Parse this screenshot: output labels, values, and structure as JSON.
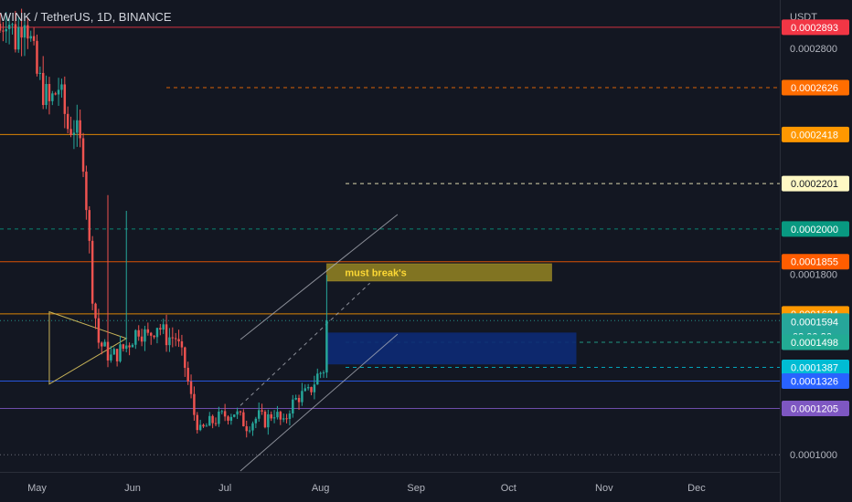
{
  "header": {
    "symbol_title": "WINK / TetherUS, 1D, BINANCE"
  },
  "price_scale": {
    "currency": "USDT"
  },
  "colors": {
    "background": "#131722",
    "up": "#26a69a",
    "down": "#ef5350",
    "axis_text": "#b2b5be"
  },
  "chart_data": {
    "type": "candlestick",
    "title": "WINK / TetherUS, 1D, BINANCE",
    "y_unit": "USDT",
    "ylim": [
      9.24e-05,
      0.0003014
    ],
    "x_range": [
      "2021-04-19",
      "2021-12-28"
    ],
    "x_ticks": [
      "May",
      "Jun",
      "Jul",
      "Aug",
      "Sep",
      "Oct",
      "Nov",
      "Dec"
    ],
    "y_ticks": [
      "0.0002800",
      "0.0001800",
      "0.0001000"
    ],
    "grid": false,
    "candles": {
      "start_date": "2021-04-19",
      "interval": "1D",
      "anchors": [
        {
          "date": "2021-04-19",
          "close": 0.000288
        },
        {
          "date": "2021-04-21",
          "close": 0.000296
        },
        {
          "date": "2021-04-24",
          "close": 0.000284
        },
        {
          "date": "2021-04-27",
          "close": 0.000297
        },
        {
          "date": "2021-05-01",
          "close": 0.000268
        },
        {
          "date": "2021-05-05",
          "close": 0.000255
        },
        {
          "date": "2021-05-08",
          "close": 0.000263
        },
        {
          "date": "2021-05-11",
          "close": 0.000245
        },
        {
          "date": "2021-05-13",
          "close": 0.000246
        },
        {
          "date": "2021-05-16",
          "close": 0.000232
        },
        {
          "date": "2021-05-19",
          "close": 0.000172
        },
        {
          "date": "2021-05-21",
          "close": 0.00015
        },
        {
          "date": "2021-05-25",
          "close": 0.000143
        },
        {
          "date": "2021-05-29",
          "close": 0.000147
        },
        {
          "date": "2021-05-31",
          "close": 0.00015
        },
        {
          "date": "2021-06-03",
          "close": 0.000156
        },
        {
          "date": "2021-06-06",
          "close": 0.000152
        },
        {
          "date": "2021-06-09",
          "close": 0.000158
        },
        {
          "date": "2021-06-12",
          "close": 0.000152
        },
        {
          "date": "2021-06-15",
          "close": 0.000152
        },
        {
          "date": "2021-06-18",
          "close": 0.000139
        },
        {
          "date": "2021-06-21",
          "close": 0.000118
        },
        {
          "date": "2021-06-23",
          "close": 0.00011
        },
        {
          "date": "2021-06-26",
          "close": 0.000114
        },
        {
          "date": "2021-06-30",
          "close": 0.000117
        },
        {
          "date": "2021-07-04",
          "close": 0.000119
        },
        {
          "date": "2021-07-08",
          "close": 0.000113
        },
        {
          "date": "2021-07-12",
          "close": 0.000117
        },
        {
          "date": "2021-07-14",
          "close": 0.000115
        },
        {
          "date": "2021-07-17",
          "close": 0.000119
        },
        {
          "date": "2021-07-20",
          "close": 0.000113
        },
        {
          "date": "2021-07-22",
          "close": 0.000121
        },
        {
          "date": "2021-07-25",
          "close": 0.000126
        },
        {
          "date": "2021-07-28",
          "close": 0.000127
        },
        {
          "date": "2021-07-31",
          "close": 0.000135
        },
        {
          "date": "2021-08-02",
          "close": 0.000138
        },
        {
          "date": "2021-08-03",
          "close": 0.0001594
        }
      ]
    },
    "horizontal_levels": [
      {
        "price": 0.0002893,
        "label": "0.0002893",
        "color": "#f23645",
        "style": "solid"
      },
      {
        "price": 0.0002626,
        "label": "0.0002626",
        "color": "#ff6d00",
        "style": "dashed"
      },
      {
        "price": 0.0002418,
        "label": "0.0002418",
        "color": "#ff9800",
        "style": "solid"
      },
      {
        "price": 0.0002201,
        "label": "0.0002201",
        "color": "#fff9c4",
        "style": "dashed"
      },
      {
        "price": 0.0002,
        "label": "0.0002000",
        "color": "#089981",
        "style": "dashed"
      },
      {
        "price": 0.0001855,
        "label": "0.0001855",
        "color": "#ff5d00",
        "style": "solid"
      },
      {
        "price": 0.0001624,
        "label": "0.0001624",
        "color": "#ff9800",
        "style": "solid"
      },
      {
        "price": 0.0001594,
        "label": "0.0001594",
        "color": "#26a69a",
        "style": "dotted",
        "sublabel": "08:00:26"
      },
      {
        "price": 0.0001498,
        "label": "0.0001498",
        "color": "#22ab94",
        "style": "dashed"
      },
      {
        "price": 0.0001387,
        "label": "0.0001387",
        "color": "#00bcd4",
        "style": "dashed"
      },
      {
        "price": 0.0001326,
        "label": "0.0001326",
        "color": "#2962ff",
        "style": "solid"
      },
      {
        "price": 0.0001205,
        "label": "0.0001205",
        "color": "#7e57c2",
        "style": "solid"
      },
      {
        "price": 0.0001,
        "label": "0.0001000",
        "color": "#787b86",
        "style": "dotted"
      }
    ],
    "annotations": [
      {
        "type": "text-box",
        "text": "must break's",
        "x_start": "2021-08-03",
        "x_end": "2021-10-15",
        "y_top": 0.0001846,
        "y_bottom": 0.0001769,
        "color": "#fdd835",
        "fill": "#a69322"
      },
      {
        "type": "rectangle",
        "x_start": "2021-08-03",
        "x_end": "2021-10-23",
        "y_top": 0.0001541,
        "y_bottom": 0.00014,
        "fill": "#0d2a75"
      },
      {
        "type": "triangle",
        "points": [
          {
            "date": "2021-05-05",
            "price": 0.0001633
          },
          {
            "date": "2021-05-30",
            "price": 0.0001515
          },
          {
            "date": "2021-05-05",
            "price": 0.0001313
          }
        ],
        "color": "#c9b458"
      },
      {
        "type": "channel-upper",
        "points": [
          {
            "date": "2021-07-06",
            "price": 0.000151
          },
          {
            "date": "2021-08-26",
            "price": 0.0002064
          }
        ],
        "color": "#b2b5be",
        "style": "solid"
      },
      {
        "type": "channel-lower",
        "points": [
          {
            "date": "2021-07-06",
            "price": 9.28e-05
          },
          {
            "date": "2021-08-26",
            "price": 0.0001534
          }
        ],
        "color": "#b2b5be",
        "style": "solid"
      },
      {
        "type": "channel-mid",
        "points": [
          {
            "date": "2021-07-06",
            "price": 0.0001218
          },
          {
            "date": "2021-08-17",
            "price": 0.000176
          }
        ],
        "color": "#b2b5be",
        "style": "dashed"
      }
    ]
  }
}
